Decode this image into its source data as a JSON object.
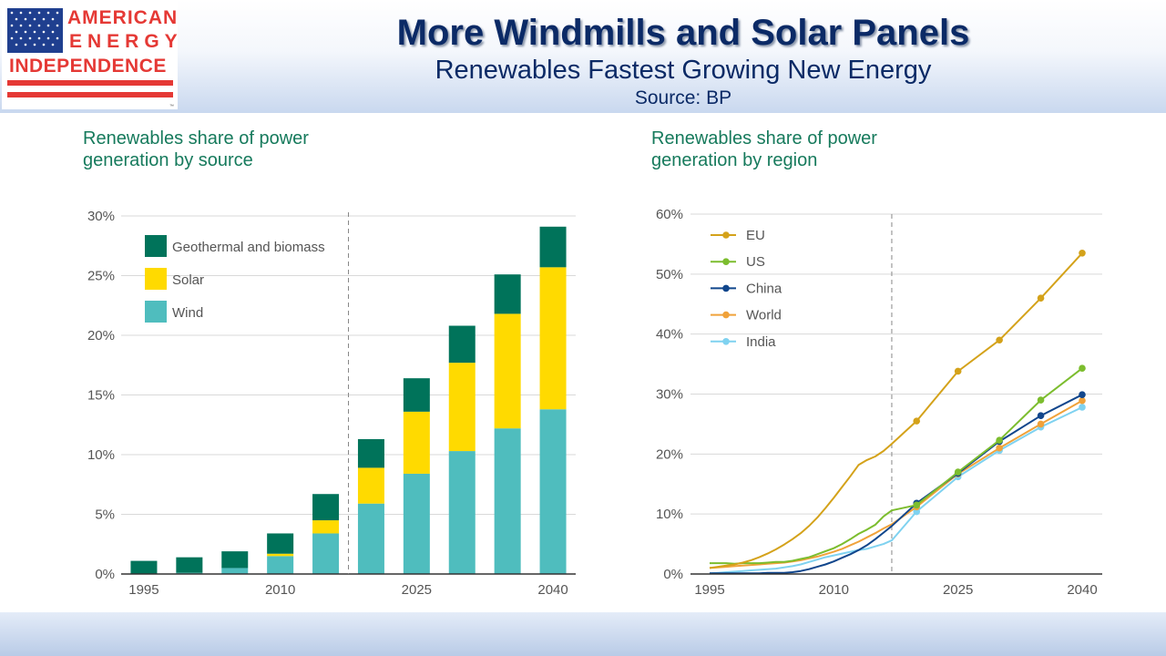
{
  "header": {
    "logo": {
      "line1": "AMERICAN",
      "line2": "ENERGY",
      "line3": "INDEPENDENCE",
      "tm": "™"
    },
    "title": "More Windmills and Solar Panels",
    "subtitle": "Renewables Fastest Growing New Energy",
    "source": "Source: BP"
  },
  "colors": {
    "geothermal": "#00735a",
    "solar": "#ffda00",
    "wind": "#4fbdbe",
    "eu": "#d4a21a",
    "us": "#7cbd2e",
    "china": "#11468c",
    "world": "#f0a23a",
    "india": "#7fd2f0",
    "title_text": "#0b2a66",
    "chart_title": "#167a5c"
  },
  "chart_data": [
    {
      "type": "bar",
      "stacked": true,
      "title": "Renewables share of power generation by source",
      "categories": [
        "1995",
        "2000",
        "2005",
        "2010",
        "2015",
        "2020",
        "2025",
        "2030",
        "2035",
        "2040"
      ],
      "x_tick_labels": [
        "1995",
        "2010",
        "2025",
        "2040"
      ],
      "series": [
        {
          "name": "Wind",
          "color_key": "wind",
          "values": [
            0.0,
            0.1,
            0.5,
            1.5,
            3.4,
            5.9,
            8.4,
            10.3,
            12.2,
            13.8
          ]
        },
        {
          "name": "Solar",
          "color_key": "solar",
          "values": [
            0.0,
            0.0,
            0.0,
            0.2,
            1.1,
            3.0,
            5.2,
            7.4,
            9.6,
            11.9
          ]
        },
        {
          "name": "Geothermal and biomass",
          "color_key": "geothermal",
          "values": [
            1.1,
            1.3,
            1.4,
            1.7,
            2.2,
            2.4,
            2.8,
            3.1,
            3.3,
            3.4
          ]
        }
      ],
      "legend_order": [
        "Geothermal and biomass",
        "Solar",
        "Wind"
      ],
      "ylim": [
        0,
        30
      ],
      "yticks": [
        0,
        5,
        10,
        15,
        20,
        25,
        30
      ],
      "ytick_labels": [
        "0%",
        "5%",
        "10%",
        "15%",
        "20%",
        "25%",
        "30%"
      ],
      "forecast_divider_after": "2015",
      "legend_position": "top-left",
      "grid": true
    },
    {
      "type": "line",
      "title": "Renewables share of power generation by region",
      "xlim": [
        1995,
        2040
      ],
      "x_tick_labels": [
        "1995",
        "2010",
        "2025",
        "2040"
      ],
      "x_ticks": [
        1995,
        2010,
        2025,
        2040
      ],
      "ylim": [
        0,
        60
      ],
      "yticks": [
        0,
        10,
        20,
        30,
        40,
        50,
        60
      ],
      "ytick_labels": [
        "0%",
        "10%",
        "20%",
        "30%",
        "40%",
        "50%",
        "60%"
      ],
      "forecast_divider_x": 2017,
      "marker_years": [
        2020,
        2025,
        2030,
        2035,
        2040
      ],
      "legend_position": "top-left",
      "grid": true,
      "series": [
        {
          "name": "EU",
          "color_key": "eu",
          "x": [
            1995,
            1996,
            1997,
            1998,
            1999,
            2000,
            2001,
            2002,
            2003,
            2004,
            2005,
            2006,
            2007,
            2008,
            2009,
            2010,
            2011,
            2012,
            2013,
            2014,
            2015,
            2016,
            2017,
            2020,
            2025,
            2030,
            2035,
            2040
          ],
          "y": [
            1.0,
            1.2,
            1.4,
            1.6,
            1.9,
            2.3,
            2.8,
            3.4,
            4.1,
            4.9,
            5.8,
            6.8,
            8.0,
            9.4,
            11.0,
            12.7,
            14.5,
            16.3,
            18.2,
            19.0,
            19.6,
            20.5,
            21.7,
            25.5,
            33.8,
            39.0,
            46.0,
            53.5
          ]
        },
        {
          "name": "US",
          "color_key": "us",
          "x": [
            1995,
            1996,
            1997,
            1998,
            1999,
            2000,
            2001,
            2002,
            2003,
            2004,
            2005,
            2006,
            2007,
            2008,
            2009,
            2010,
            2011,
            2012,
            2013,
            2014,
            2015,
            2016,
            2017,
            2020,
            2025,
            2030,
            2035,
            2040
          ],
          "y": [
            1.8,
            1.8,
            1.8,
            1.7,
            1.8,
            1.8,
            1.8,
            1.9,
            2.0,
            2.0,
            2.2,
            2.5,
            2.8,
            3.3,
            3.8,
            4.3,
            5.0,
            5.8,
            6.7,
            7.4,
            8.2,
            9.6,
            10.6,
            11.5,
            17.0,
            22.3,
            29.0,
            34.3
          ]
        },
        {
          "name": "China",
          "color_key": "china",
          "x": [
            1995,
            1996,
            1997,
            1998,
            1999,
            2000,
            2001,
            2002,
            2003,
            2004,
            2005,
            2006,
            2007,
            2008,
            2009,
            2010,
            2011,
            2012,
            2013,
            2014,
            2015,
            2016,
            2017,
            2020,
            2025,
            2030,
            2035,
            2040
          ],
          "y": [
            0.1,
            0.1,
            0.1,
            0.1,
            0.1,
            0.1,
            0.1,
            0.2,
            0.2,
            0.2,
            0.3,
            0.5,
            0.8,
            1.2,
            1.6,
            2.1,
            2.7,
            3.3,
            4.0,
            4.8,
            5.8,
            6.9,
            8.0,
            11.8,
            16.8,
            22.1,
            26.4,
            29.9
          ]
        },
        {
          "name": "World",
          "color_key": "world",
          "x": [
            1995,
            1996,
            1997,
            1998,
            1999,
            2000,
            2001,
            2002,
            2003,
            2004,
            2005,
            2006,
            2007,
            2008,
            2009,
            2010,
            2011,
            2012,
            2013,
            2014,
            2015,
            2016,
            2017,
            2020,
            2025,
            2030,
            2035,
            2040
          ],
          "y": [
            1.0,
            1.1,
            1.2,
            1.3,
            1.4,
            1.5,
            1.6,
            1.7,
            1.8,
            1.9,
            2.1,
            2.3,
            2.6,
            2.9,
            3.3,
            3.7,
            4.2,
            4.8,
            5.4,
            6.1,
            6.8,
            7.6,
            8.3,
            11.2,
            16.7,
            21.0,
            25.0,
            28.9
          ]
        },
        {
          "name": "India",
          "color_key": "india",
          "x": [
            1995,
            1996,
            1997,
            1998,
            1999,
            2000,
            2001,
            2002,
            2003,
            2004,
            2005,
            2006,
            2007,
            2008,
            2009,
            2010,
            2011,
            2012,
            2013,
            2014,
            2015,
            2016,
            2017,
            2020,
            2025,
            2030,
            2035,
            2040
          ],
          "y": [
            0.1,
            0.2,
            0.3,
            0.4,
            0.5,
            0.6,
            0.7,
            0.8,
            0.9,
            1.1,
            1.3,
            1.6,
            2.0,
            2.4,
            2.8,
            3.1,
            3.4,
            3.7,
            4.0,
            4.2,
            4.6,
            5.0,
            5.6,
            10.4,
            16.2,
            20.6,
            24.5,
            27.8
          ]
        }
      ],
      "legend_order": [
        "EU",
        "US",
        "China",
        "World",
        "India"
      ]
    }
  ]
}
